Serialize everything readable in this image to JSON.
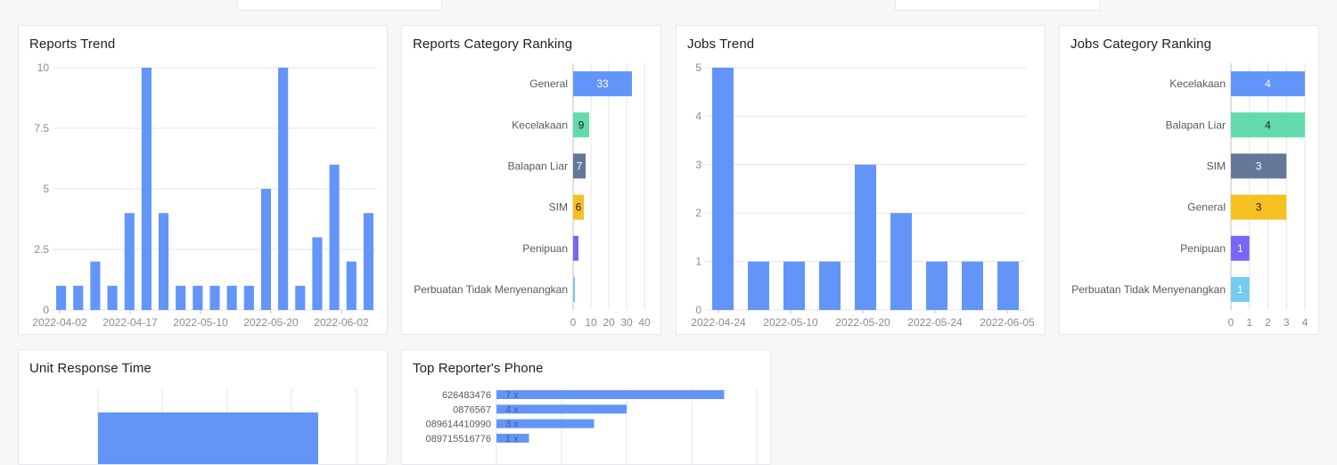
{
  "colors": {
    "blue": "#6395F9",
    "green": "#62DAAB",
    "slate": "#657798",
    "yellow": "#F6C022",
    "purple": "#7666F9",
    "cyan": "#74CBED",
    "grid": "#e4e4e4",
    "axis_text": "#8c8c8c"
  },
  "cards": {
    "reports_trend": "Reports Trend",
    "reports_category": "Reports Category Ranking",
    "jobs_trend": "Jobs Trend",
    "jobs_category": "Jobs Category Ranking",
    "unit_response": "Unit Response Time",
    "top_reporter": "Top Reporter's Phone"
  },
  "chart_data": [
    {
      "id": "reports_trend",
      "type": "bar",
      "title": "Reports Trend",
      "values": [
        1,
        1,
        2,
        1,
        4,
        10,
        4,
        1,
        1,
        1,
        1,
        1,
        5,
        10,
        1,
        3,
        6,
        2,
        4
      ],
      "x_tick_labels": [
        "2022-04-02",
        "2022-04-17",
        "2022-05-10",
        "2022-05-20",
        "2022-06-02"
      ],
      "y_ticks": [
        "0",
        "2.5",
        "5",
        "7.5",
        "10"
      ],
      "ylim": [
        0,
        10
      ],
      "grid": true
    },
    {
      "id": "reports_category",
      "type": "bar",
      "orientation": "horizontal",
      "title": "Reports Category Ranking",
      "categories": [
        "General",
        "Kecelakaan",
        "Balapan Liar",
        "SIM",
        "Penipuan",
        "Perbuatan Tidak Menyenangkan"
      ],
      "values": [
        33,
        9,
        7,
        6,
        3,
        1
      ],
      "value_labels": [
        "33",
        "9",
        "7",
        "6",
        "",
        ""
      ],
      "x_ticks": [
        "0",
        "10",
        "20",
        "30",
        "40"
      ],
      "xlim": [
        0,
        40
      ]
    },
    {
      "id": "jobs_trend",
      "type": "bar",
      "title": "Jobs Trend",
      "values": [
        5,
        1,
        1,
        1,
        3,
        2,
        1,
        1,
        1
      ],
      "x_tick_labels": [
        "2022-04-24",
        "2022-05-10",
        "2022-05-20",
        "2022-05-24",
        "2022-06-05"
      ],
      "y_ticks": [
        "0",
        "1",
        "2",
        "3",
        "4",
        "5"
      ],
      "ylim": [
        0,
        5
      ],
      "grid": true
    },
    {
      "id": "jobs_category",
      "type": "bar",
      "orientation": "horizontal",
      "title": "Jobs Category Ranking",
      "categories": [
        "Kecelakaan",
        "Balapan Liar",
        "SIM",
        "General",
        "Penipuan",
        "Perbuatan Tidak Menyenangkan"
      ],
      "values": [
        4,
        4,
        3,
        3,
        1,
        1
      ],
      "value_labels": [
        "4",
        "4",
        "3",
        "3",
        "1",
        "1"
      ],
      "x_ticks": [
        "0",
        "1",
        "2",
        "3",
        "4"
      ],
      "xlim": [
        0,
        4
      ]
    },
    {
      "id": "unit_response",
      "type": "bar",
      "orientation": "horizontal",
      "title": "Unit Response Time",
      "partial": true
    },
    {
      "id": "top_reporter",
      "type": "bar",
      "orientation": "horizontal",
      "title": "Top Reporter's Phone",
      "categories": [
        "626483476",
        "0876567",
        "089614410990",
        "089715516776"
      ],
      "values": [
        7,
        4,
        3,
        1
      ],
      "value_labels": [
        "7 x",
        "4 x",
        "3 x",
        "1 x"
      ],
      "xlim": [
        0,
        8
      ]
    }
  ]
}
